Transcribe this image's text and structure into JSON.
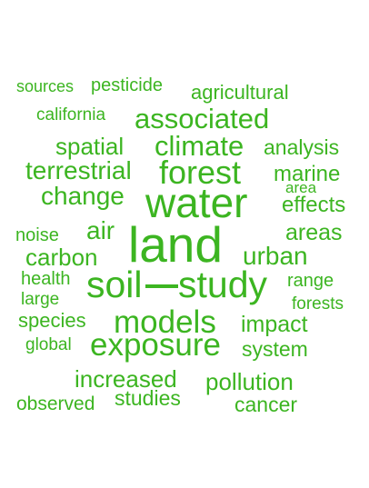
{
  "word_color": "#3cb521",
  "words": [
    {
      "text": "sources"
    },
    {
      "text": "pesticide"
    },
    {
      "text": "agricultural"
    },
    {
      "text": "california"
    },
    {
      "text": "associated"
    },
    {
      "text": "spatial"
    },
    {
      "text": "climate"
    },
    {
      "text": "analysis"
    },
    {
      "text": "terrestrial"
    },
    {
      "text": "forest"
    },
    {
      "text": "marine"
    },
    {
      "text": "area"
    },
    {
      "text": "change"
    },
    {
      "text": "water"
    },
    {
      "text": "effects"
    },
    {
      "text": "noise"
    },
    {
      "text": "air"
    },
    {
      "text": "land"
    },
    {
      "text": "areas"
    },
    {
      "text": "carbon"
    },
    {
      "text": "urban"
    },
    {
      "text": "health"
    },
    {
      "text": "soil"
    },
    {
      "text": "study"
    },
    {
      "text": "range"
    },
    {
      "text": "large"
    },
    {
      "text": "forests"
    },
    {
      "text": "species"
    },
    {
      "text": "models"
    },
    {
      "text": "impact"
    },
    {
      "text": "global"
    },
    {
      "text": "exposure"
    },
    {
      "text": "system"
    },
    {
      "text": "increased"
    },
    {
      "text": "pollution"
    },
    {
      "text": "studies"
    },
    {
      "text": "observed"
    },
    {
      "text": "cancer"
    }
  ]
}
